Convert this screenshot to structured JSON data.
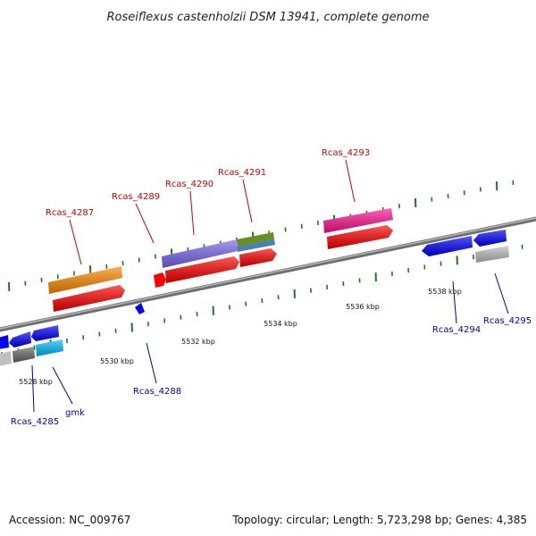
{
  "title": "Roseiflexus castenholzii DSM 13941, complete genome",
  "footer": {
    "accession": "Accession: NC_009767",
    "topology": "Topology: circular; Length: 5,723,298 bp; Genes: 4,385"
  },
  "colors": {
    "forward_label": "#cc0000",
    "reverse_label": "#0000aa",
    "backbone": "#888888",
    "ticks": "#1a7a1a"
  },
  "scale_labels": [
    "5528 kbp",
    "5530 kbp",
    "5532 kbp",
    "5534 kbp",
    "5536 kbp",
    "5538 kbp"
  ],
  "genes_forward": [
    {
      "name": "Rcas_4287",
      "color": "#ff8c00"
    },
    {
      "name": "Rcas_4289",
      "color": "#ff0000"
    },
    {
      "name": "Rcas_4290",
      "color": "#7b68ee"
    },
    {
      "name": "Rcas_4291",
      "color": "#6b8e23"
    },
    {
      "name": "Rcas_4293",
      "color": "#ff1493"
    }
  ],
  "genes_reverse": [
    {
      "name": "Rcas_4285",
      "color": "#0000ff"
    },
    {
      "name": "gmk",
      "color": "#00bfff"
    },
    {
      "name": "Rcas_4288",
      "color": "#0000ff"
    },
    {
      "name": "Rcas_4294",
      "color": "#0000ff"
    },
    {
      "name": "Rcas_4295",
      "color": "#c0c0c0"
    }
  ]
}
